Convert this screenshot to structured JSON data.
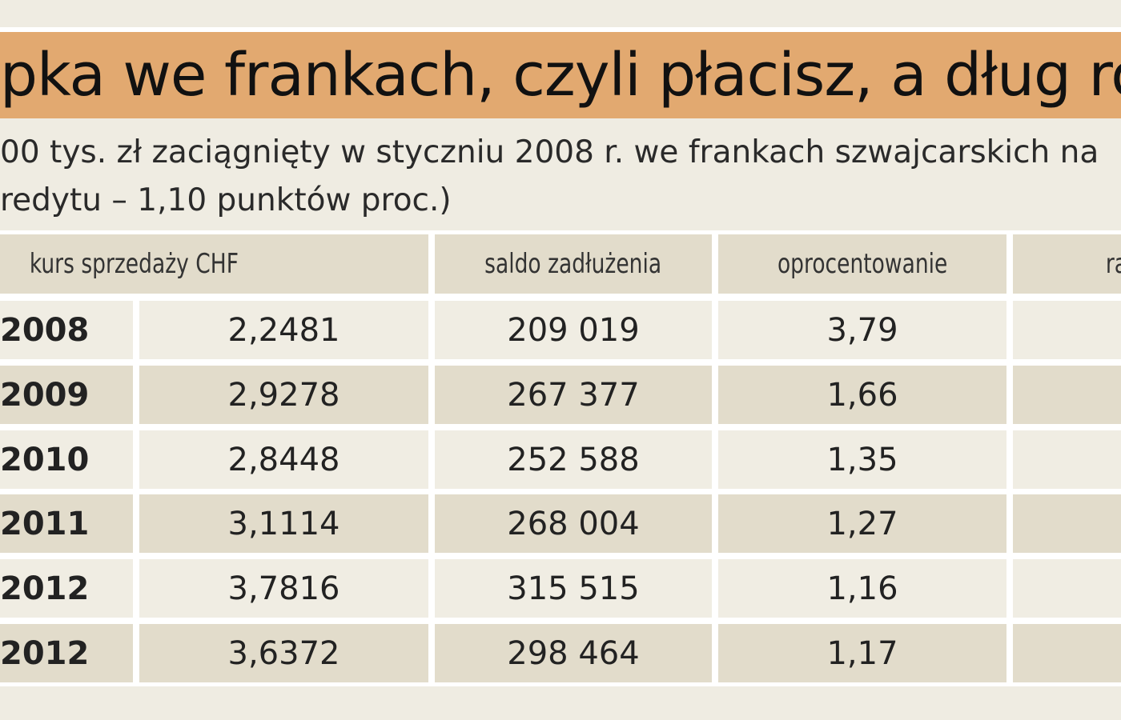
{
  "title": "pka we frankach, czyli płacisz, a dług ro",
  "subtitle": [
    "00 tys. zł zaciągnięty w styczniu 2008 r. we frankach szwajcarskich na",
    "redytu – 1,10 punktów proc.)"
  ],
  "table": {
    "header": [
      "kurs sprzedaży CHF",
      "saldo zadłużenia",
      "oprocentowanie",
      "ra"
    ],
    "rows": [
      [
        "2008",
        "2,2481",
        "209 019",
        "3,79"
      ],
      [
        "2009",
        "2,9278",
        "267 377",
        "1,66"
      ],
      [
        "2010",
        "2,8448",
        "252 588",
        "1,35"
      ],
      [
        "2011",
        "3,1114",
        "268 004",
        "1,27"
      ],
      [
        "2012",
        "3,7816",
        "315 515",
        "1,16"
      ],
      [
        "2012",
        "3,6372",
        "298 464",
        "1,17"
      ]
    ]
  }
}
